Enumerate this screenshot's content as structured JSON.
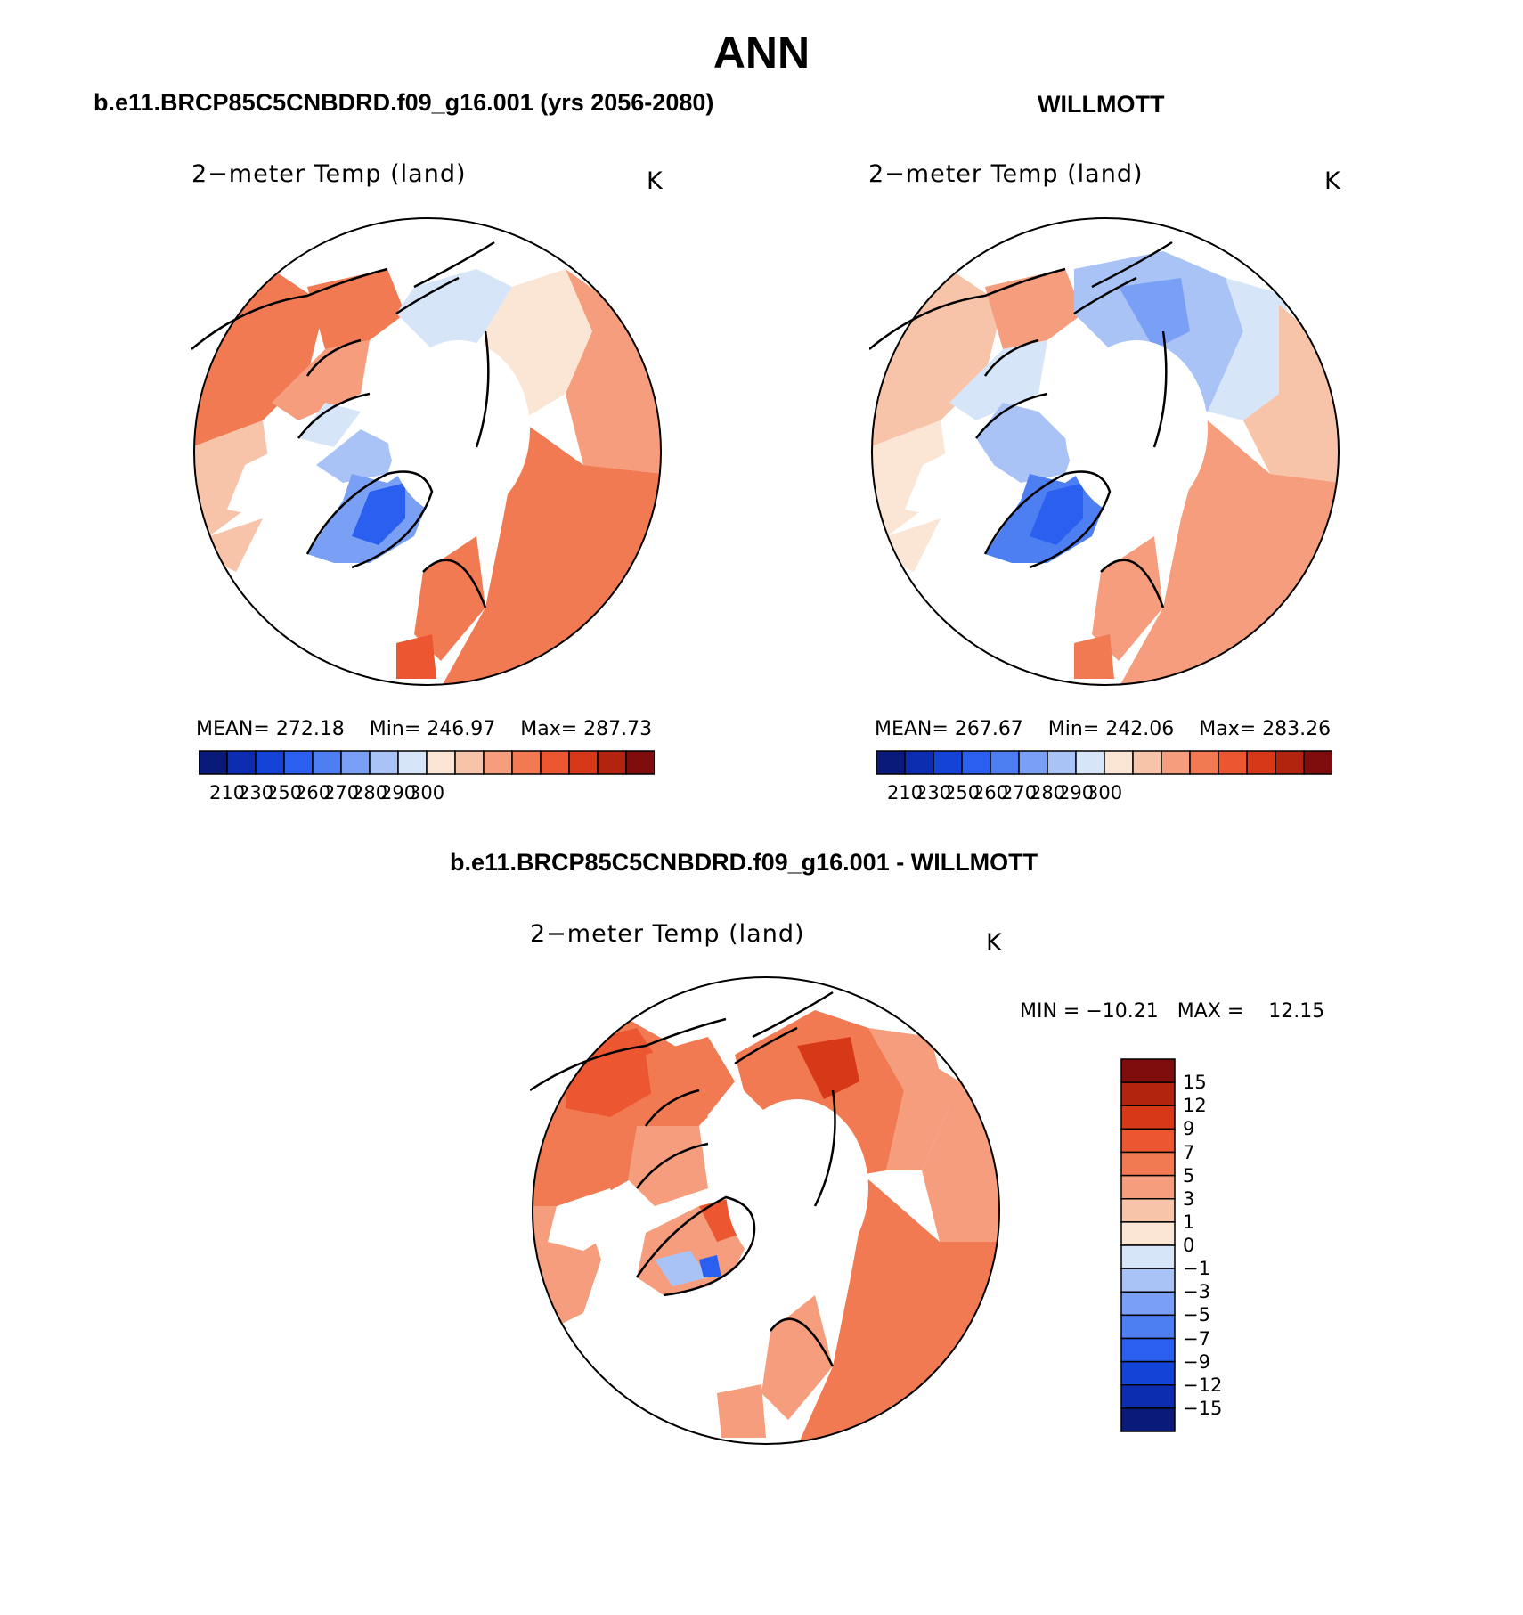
{
  "title": "ANN",
  "panels": [
    {
      "case_title": "b.e11.BRCP85C5CNBDRD.f09_g16.001 (yrs 2056-2080)",
      "field_label": "2−meter Temp (land)",
      "units": "K",
      "stats": {
        "mean_label": "MEAN=",
        "mean": "272.18",
        "min_label": "Min=",
        "min": "246.97",
        "max_label": "Max=",
        "max": "287.73"
      },
      "colorbar": {
        "colors": [
          "#0a1a7a",
          "#0c2db0",
          "#1443d8",
          "#2a5ff0",
          "#4d7ff2",
          "#7aa0f5",
          "#a9c3f7",
          "#d6e6f8",
          "#fbe6d6",
          "#f8c4a9",
          "#f59d7c",
          "#f27a52",
          "#ec5630",
          "#d73818",
          "#b3240e",
          "#800d0d"
        ],
        "ticks": [
          "210",
          "230",
          "250",
          "260",
          "270",
          "280",
          "290",
          "300"
        ]
      }
    },
    {
      "case_title": "WILLMOTT",
      "field_label": "2−meter Temp (land)",
      "units": "K",
      "stats": {
        "mean_label": "MEAN=",
        "mean": "267.67",
        "min_label": "Min=",
        "min": "242.06",
        "max_label": "Max=",
        "max": "283.26"
      },
      "colorbar": {
        "colors": [
          "#0a1a7a",
          "#0c2db0",
          "#1443d8",
          "#2a5ff0",
          "#4d7ff2",
          "#7aa0f5",
          "#a9c3f7",
          "#d6e6f8",
          "#fbe6d6",
          "#f8c4a9",
          "#f59d7c",
          "#f27a52",
          "#ec5630",
          "#d73818",
          "#b3240e",
          "#800d0d"
        ],
        "ticks": [
          "210",
          "230",
          "250",
          "260",
          "270",
          "280",
          "290",
          "300"
        ]
      }
    }
  ],
  "diff_panel": {
    "case_title": "b.e11.BRCP85C5CNBDRD.f09_g16.001 - WILLMOTT",
    "field_label": "2−meter Temp (land)",
    "units": "K",
    "minmax": {
      "min_label": "MIN =",
      "min": "−10.21",
      "max_label": "MAX =",
      "max": "12.15"
    },
    "colorbar": {
      "colors": [
        "#800d0d",
        "#b3240e",
        "#d73818",
        "#ec5630",
        "#f27a52",
        "#f59d7c",
        "#f8c4a9",
        "#fbe6d6",
        "#d6e6f8",
        "#a9c3f7",
        "#7aa0f5",
        "#4d7ff2",
        "#2a5ff0",
        "#1443d8",
        "#0c2db0",
        "#0a1a7a"
      ],
      "ticks": [
        "15",
        "12",
        "9",
        "7",
        "5",
        "3",
        "1",
        "0",
        "−1",
        "−3",
        "−5",
        "−7",
        "−9",
        "−12",
        "−15"
      ]
    }
  }
}
